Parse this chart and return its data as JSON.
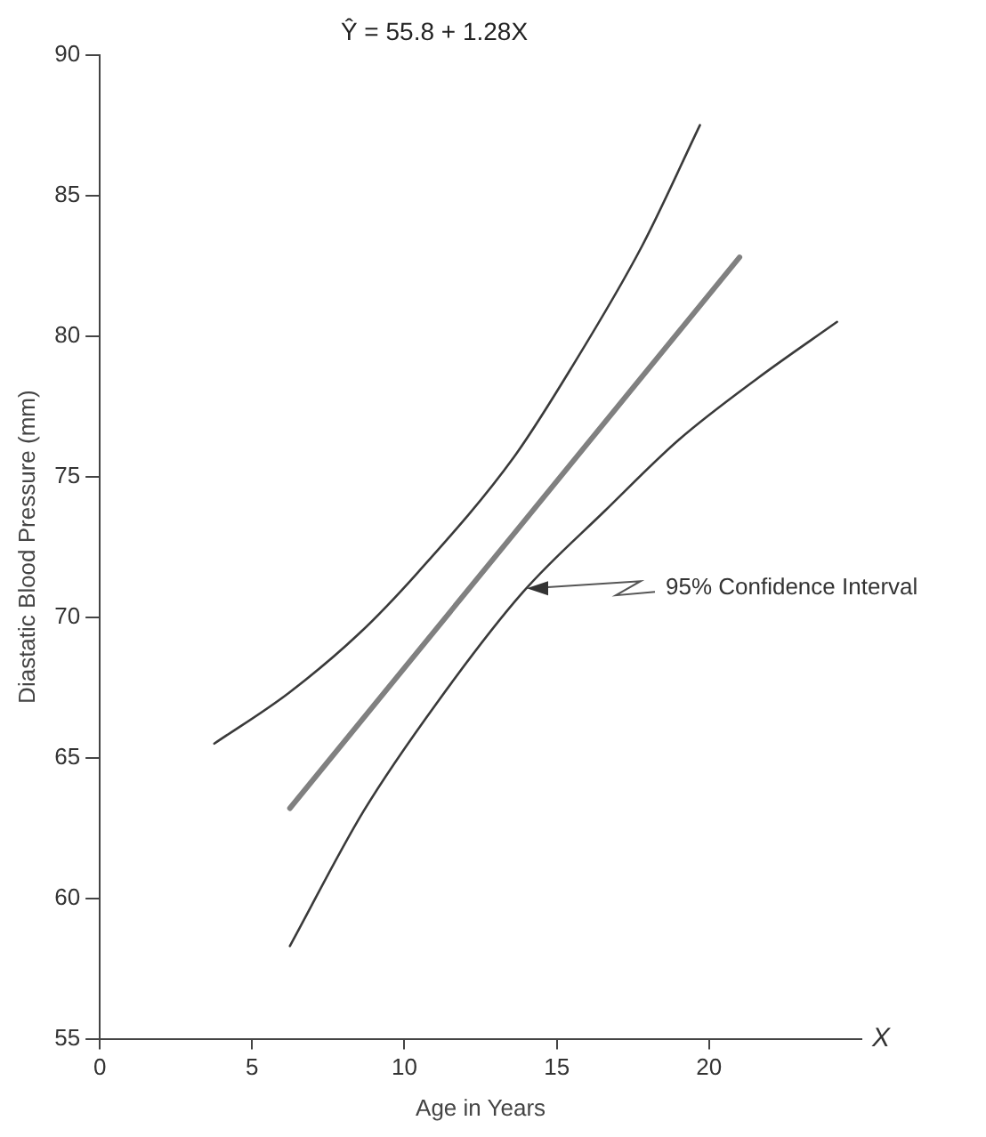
{
  "chart_data": {
    "type": "line",
    "title": "Ŷ = 55.8 + 1.28X",
    "xlabel": "Age in Years",
    "ylabel": "Diastatic Blood Pressure (mm)",
    "annotations": [
      {
        "text": "95% Confidence Interval",
        "x": 13.9,
        "y": 70.9
      },
      "X"
    ],
    "series": [
      {
        "color": "#3a3a3a",
        "x": [
          3.76,
          6.2,
          8.5,
          10.45,
          13.6,
          15.5,
          17.8,
          19.7
        ],
        "values": [
          65.5,
          67.3,
          69.4,
          71.6,
          75.7,
          78.9,
          83.2,
          87.5
        ]
      },
      {
        "color": "#808080",
        "x": [
          6.24,
          21.0
        ],
        "values": [
          63.2,
          82.8
        ]
      },
      {
        "color": "#3a3a3a",
        "x": [
          6.24,
          8.66,
          11.1,
          13.9,
          16.6,
          19.0,
          21.6,
          24.2
        ],
        "values": [
          58.3,
          63.1,
          67.0,
          70.9,
          73.8,
          76.3,
          78.5,
          80.5
        ]
      }
    ],
    "xlim": [
      0,
      25
    ],
    "xticks": [
      0,
      5,
      10,
      15,
      20
    ],
    "ylim": [
      55,
      90
    ],
    "yticks": [
      55,
      60,
      65,
      70,
      75,
      80,
      85,
      90
    ],
    "grid": false,
    "legend": false,
    "marker": "none",
    "line_style": "solid"
  }
}
